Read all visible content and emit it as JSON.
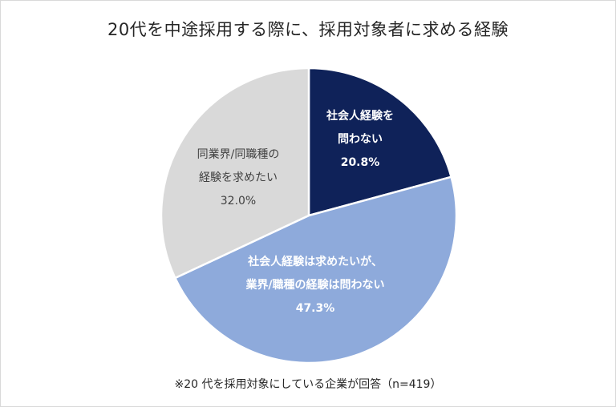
{
  "chart_data": {
    "type": "pie",
    "title": "20代を中途採用する際に、採用対象者に求める経験",
    "footnote": "※20 代を採用対象にしている企業が回答（n=419）",
    "slices": [
      {
        "label_lines": [
          "社会人経験を",
          "問わない"
        ],
        "value": 20.8,
        "value_label": "20.8%",
        "color": "#0f2259",
        "text_color": "#ffffff",
        "bold": true
      },
      {
        "label_lines": [
          "社会人経験は求めたいが、",
          "業界/職種の経験は問わない"
        ],
        "value": 47.3,
        "value_label": "47.3%",
        "color": "#8eaadb",
        "text_color": "#ffffff",
        "bold": true
      },
      {
        "label_lines": [
          "同業界/同職種の",
          "経験を求めたい"
        ],
        "value": 32.0,
        "value_label": "32.0%",
        "color": "#d9d9d9",
        "text_color": "#404040",
        "bold": false
      }
    ]
  }
}
